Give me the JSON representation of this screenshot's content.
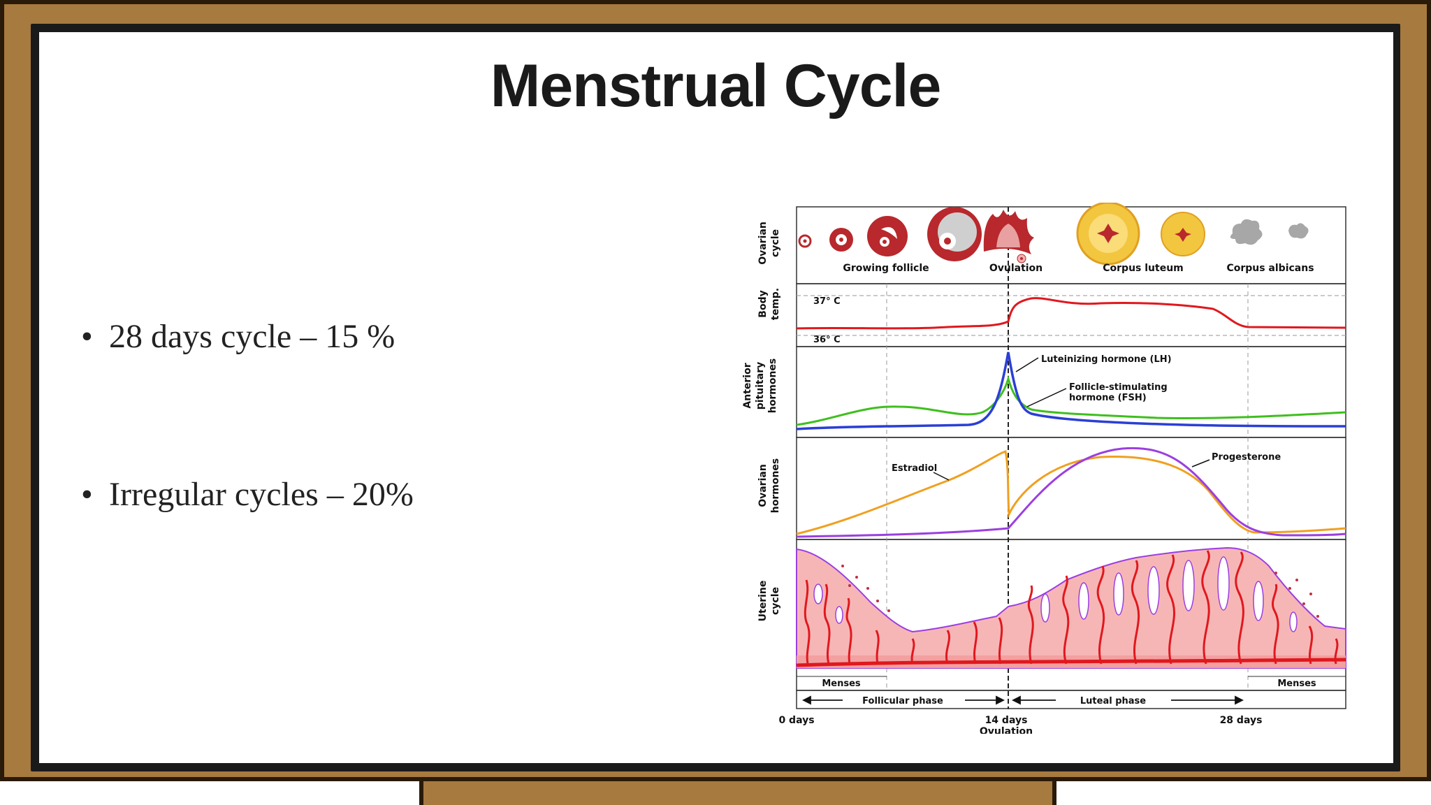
{
  "slide": {
    "title": "Menstrual Cycle",
    "bullets": [
      {
        "text": "28 days cycle – 15 %"
      },
      {
        "text": "Irregular cycles – 20%"
      }
    ]
  },
  "diagram": {
    "row_labels": {
      "ovarian_cycle": [
        "Ovarian",
        "cycle"
      ],
      "body_temp": [
        "Body",
        "temp."
      ],
      "anterior_pituitary": [
        "Anterior",
        "pituitary",
        "hormones"
      ],
      "ovarian_hormones": [
        "Ovarian",
        "hormones"
      ],
      "uterine_cycle": [
        "Uterine",
        "cycle"
      ]
    },
    "ovarian_stages": [
      "Growing follicle",
      "Ovulation",
      "Corpus luteum",
      "Corpus albicans"
    ],
    "temps": {
      "high": "37° C",
      "low": "36° C"
    },
    "pituitary_labels": {
      "lh": "Luteinizing hormone (LH)",
      "fsh_line1": "Follicle-stimulating",
      "fsh_line2": "hormone (FSH)"
    },
    "ovarian_hormone_labels": {
      "estradiol": "Estradiol",
      "progesterone": "Progesterone"
    },
    "menses": {
      "left": "Menses",
      "right": "Menses"
    },
    "phases": {
      "follicular": "Follicular phase",
      "luteal": "Luteal phase"
    },
    "days": {
      "start": "0 days",
      "mid": "14 days",
      "mid_sub": "Ovulation",
      "end": "28 days"
    },
    "colors": {
      "temperature": "#e0181e",
      "lh": "#2a3fd6",
      "fsh": "#3fbf1f",
      "estradiol": "#f0a020",
      "progesterone": "#9b3fe0",
      "endometrium": "#f7b6b6",
      "vessel": "#e0181e",
      "follicle": "#b8282c",
      "corpus_luteum": "#f3c640",
      "corpus_albicans": "#a7a7a7"
    }
  }
}
